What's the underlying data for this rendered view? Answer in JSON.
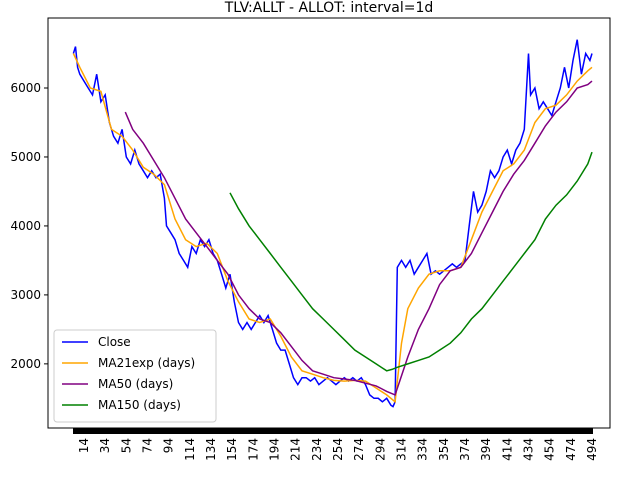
{
  "chart_data": {
    "type": "line",
    "title": "TLV:ALLT - ALLOT: interval=1d",
    "xlim": [
      -20,
      511
    ],
    "ylim": [
      1070,
      7015
    ],
    "xticks": [
      14,
      34,
      54,
      74,
      94,
      114,
      134,
      154,
      174,
      194,
      214,
      234,
      254,
      274,
      294,
      314,
      334,
      354,
      374,
      394,
      414,
      434,
      454,
      474,
      494
    ],
    "yticks": [
      2000,
      3000,
      4000,
      5000,
      6000
    ],
    "legend": "lower left",
    "series": [
      {
        "name": "Close",
        "color": "#0000ff",
        "x": [
          4,
          6,
          8,
          10,
          14,
          18,
          22,
          26,
          30,
          34,
          38,
          42,
          46,
          50,
          54,
          58,
          62,
          66,
          70,
          74,
          78,
          82,
          86,
          90,
          92,
          96,
          100,
          104,
          108,
          112,
          116,
          120,
          124,
          128,
          132,
          136,
          140,
          144,
          148,
          152,
          156,
          160,
          164,
          168,
          172,
          176,
          180,
          184,
          188,
          192,
          196,
          200,
          204,
          208,
          212,
          216,
          220,
          224,
          228,
          232,
          236,
          240,
          244,
          248,
          252,
          256,
          260,
          264,
          268,
          272,
          276,
          280,
          284,
          288,
          292,
          296,
          300,
          304,
          306,
          308,
          310,
          314,
          318,
          322,
          326,
          330,
          334,
          338,
          342,
          346,
          350,
          354,
          358,
          362,
          366,
          370,
          374,
          378,
          382,
          386,
          390,
          394,
          398,
          402,
          406,
          410,
          414,
          418,
          422,
          426,
          430,
          434,
          436,
          440,
          444,
          448,
          452,
          456,
          460,
          464,
          468,
          472,
          476,
          480,
          484,
          488,
          492,
          494
        ],
        "values": [
          6500,
          6600,
          6300,
          6200,
          6100,
          6000,
          5900,
          6200,
          5800,
          5900,
          5500,
          5300,
          5200,
          5400,
          5000,
          4900,
          5100,
          4900,
          4800,
          4700,
          4800,
          4700,
          4750,
          4400,
          4000,
          3900,
          3800,
          3600,
          3500,
          3400,
          3700,
          3600,
          3800,
          3700,
          3800,
          3600,
          3500,
          3300,
          3100,
          3300,
          2900,
          2600,
          2500,
          2600,
          2500,
          2600,
          2700,
          2600,
          2700,
          2500,
          2300,
          2200,
          2200,
          2000,
          1800,
          1700,
          1800,
          1800,
          1750,
          1800,
          1700,
          1750,
          1800,
          1750,
          1700,
          1750,
          1800,
          1750,
          1800,
          1750,
          1800,
          1700,
          1550,
          1500,
          1500,
          1450,
          1500,
          1400,
          1380,
          1450,
          3400,
          3500,
          3400,
          3500,
          3300,
          3400,
          3500,
          3600,
          3300,
          3350,
          3300,
          3350,
          3400,
          3450,
          3400,
          3450,
          3500,
          4000,
          4500,
          4200,
          4300,
          4500,
          4800,
          4700,
          4800,
          5000,
          5100,
          4900,
          5100,
          5200,
          5400,
          6500,
          5900,
          6000,
          5700,
          5800,
          5700,
          5600,
          5800,
          6000,
          6300,
          6000,
          6400,
          6700,
          6200,
          6500,
          6400,
          6500
        ]
      },
      {
        "name": "MA21exp (days)",
        "color": "#ffa500",
        "x": [
          4,
          10,
          20,
          30,
          40,
          50,
          60,
          70,
          80,
          90,
          100,
          110,
          120,
          130,
          140,
          150,
          160,
          170,
          180,
          190,
          200,
          210,
          220,
          230,
          240,
          250,
          260,
          270,
          280,
          290,
          300,
          308,
          314,
          320,
          330,
          340,
          350,
          360,
          370,
          380,
          390,
          400,
          410,
          420,
          430,
          440,
          450,
          460,
          470,
          480,
          490,
          494
        ],
        "values": [
          6500,
          6300,
          6000,
          5950,
          5400,
          5300,
          5100,
          4850,
          4750,
          4600,
          4100,
          3800,
          3700,
          3750,
          3600,
          3200,
          2900,
          2650,
          2600,
          2650,
          2400,
          2100,
          1900,
          1850,
          1800,
          1760,
          1750,
          1760,
          1750,
          1650,
          1550,
          1450,
          2300,
          2800,
          3100,
          3300,
          3350,
          3350,
          3400,
          3800,
          4200,
          4500,
          4800,
          4900,
          5100,
          5500,
          5700,
          5750,
          5900,
          6100,
          6250,
          6300
        ]
      },
      {
        "name": "MA50 (days)",
        "color": "#800080",
        "x": [
          53,
          60,
          70,
          80,
          90,
          100,
          110,
          120,
          130,
          140,
          150,
          160,
          170,
          180,
          190,
          200,
          210,
          220,
          230,
          240,
          250,
          260,
          270,
          280,
          290,
          300,
          308,
          320,
          330,
          340,
          350,
          360,
          370,
          380,
          390,
          400,
          410,
          420,
          430,
          440,
          450,
          460,
          470,
          480,
          490,
          494
        ],
        "values": [
          5650,
          5400,
          5200,
          4950,
          4700,
          4400,
          4100,
          3900,
          3700,
          3500,
          3300,
          3000,
          2800,
          2650,
          2600,
          2450,
          2250,
          2050,
          1900,
          1850,
          1800,
          1780,
          1760,
          1720,
          1680,
          1600,
          1550,
          2100,
          2500,
          2800,
          3150,
          3350,
          3400,
          3600,
          3900,
          4200,
          4500,
          4750,
          4950,
          5200,
          5450,
          5650,
          5800,
          6000,
          6050,
          6100
        ]
      },
      {
        "name": "MA150 (days)",
        "color": "#008000",
        "x": [
          152,
          160,
          170,
          180,
          190,
          200,
          210,
          220,
          230,
          240,
          250,
          260,
          270,
          280,
          290,
          300,
          305,
          310,
          320,
          330,
          340,
          350,
          360,
          370,
          380,
          390,
          400,
          410,
          420,
          430,
          440,
          450,
          460,
          470,
          480,
          490,
          494
        ],
        "values": [
          4480,
          4250,
          4000,
          3800,
          3600,
          3400,
          3200,
          3000,
          2800,
          2650,
          2500,
          2350,
          2200,
          2100,
          2000,
          1900,
          1920,
          1950,
          2000,
          2050,
          2100,
          2200,
          2300,
          2450,
          2650,
          2800,
          3000,
          3200,
          3400,
          3600,
          3800,
          4100,
          4300,
          4450,
          4650,
          4900,
          5070
        ]
      }
    ]
  }
}
